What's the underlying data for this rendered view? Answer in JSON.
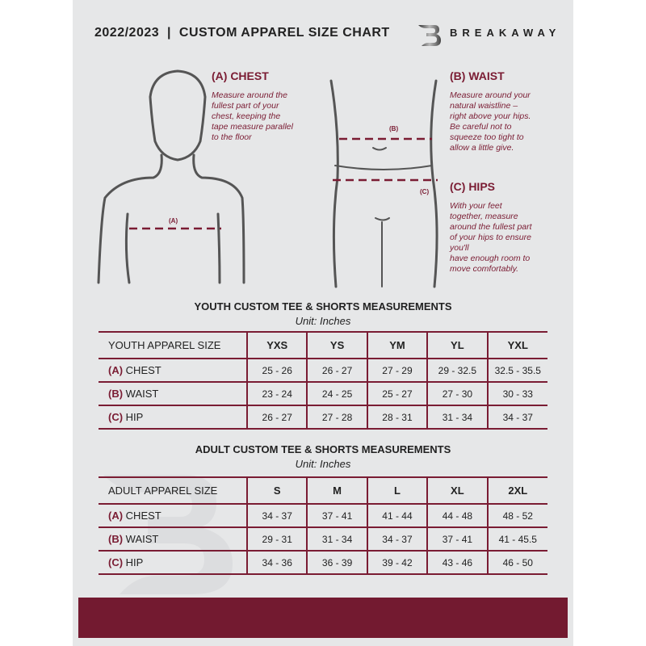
{
  "header": {
    "title": "2022/2023  |  CUSTOM APPAREL SIZE CHART",
    "brand": "BREAKAWAY",
    "logo_letter": "B"
  },
  "colors": {
    "accent": "#7a1c33",
    "background": "#e6e7e8",
    "band": "#731a30"
  },
  "guide": {
    "chest": {
      "title": "(A) CHEST",
      "label": "(A)",
      "text": [
        "Measure around the",
        "fullest part of your",
        "chest, keeping the",
        "tape measure parallel",
        "to the floor"
      ]
    },
    "waist": {
      "title": "(B) WAIST",
      "label": "(B)",
      "text": [
        "Measure around your",
        "natural waistline –",
        "right above your hips.",
        "Be careful not to",
        "squeeze too tight to",
        "allow a little give."
      ]
    },
    "hips": {
      "title": "(C) HIPS",
      "label": "(C)",
      "text": [
        "With your feet",
        "together, measure",
        "around the fullest part",
        "of your hips to ensure",
        "you'll",
        "have enough room to",
        "move comfortably."
      ]
    }
  },
  "youth": {
    "title": "YOUTH CUSTOM TEE & SHORTS MEASUREMENTS",
    "unit": "Unit: Inches",
    "header": [
      "YOUTH APPAREL SIZE",
      "YXS",
      "YS",
      "YM",
      "YL",
      "YXL"
    ],
    "rows": [
      {
        "code": "(A)",
        "name": "CHEST",
        "values": [
          "25 - 26",
          "26 - 27",
          "27 - 29",
          "29 - 32.5",
          "32.5 - 35.5"
        ]
      },
      {
        "code": "(B)",
        "name": "WAIST",
        "values": [
          "23 - 24",
          "24 - 25",
          "25 - 27",
          "27 - 30",
          "30 - 33"
        ]
      },
      {
        "code": "(C)",
        "name": "HIP",
        "values": [
          "26 - 27",
          "27 - 28",
          "28 - 31",
          "31 - 34",
          "34 - 37"
        ]
      }
    ]
  },
  "adult": {
    "title": "ADULT CUSTOM TEE & SHORTS MEASUREMENTS",
    "unit": "Unit: Inches",
    "header": [
      "ADULT APPAREL SIZE",
      "S",
      "M",
      "L",
      "XL",
      "2XL"
    ],
    "rows": [
      {
        "code": "(A)",
        "name": "CHEST",
        "values": [
          "34 - 37",
          "37 - 41",
          "41 - 44",
          "44 - 48",
          "48 - 52"
        ]
      },
      {
        "code": "(B)",
        "name": "WAIST",
        "values": [
          "29 - 31",
          "31 - 34",
          "34 - 37",
          "37 - 41",
          "41 - 45.5"
        ]
      },
      {
        "code": "(C)",
        "name": "HIP",
        "values": [
          "34 - 36",
          "36 - 39",
          "39 - 42",
          "43 - 46",
          "46 - 50"
        ]
      }
    ]
  }
}
